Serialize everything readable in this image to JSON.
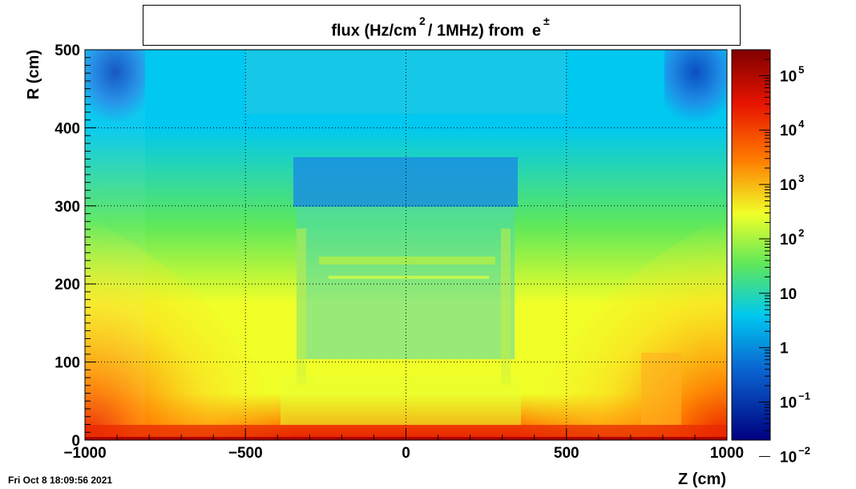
{
  "timestamp": "Fri Oct  8 18:09:56 2021",
  "chart_data": {
    "type": "heatmap",
    "title": {
      "main": "flux (Hz/cm",
      "superscript": "2",
      "rest": "/ 1MHz) from",
      "particle": "e",
      "particle_superscript": "±"
    },
    "xlabel": "Z (cm)",
    "ylabel": "R (cm)",
    "xlim": [
      -1000,
      1000
    ],
    "ylim": [
      0,
      500
    ],
    "x_ticks": [
      -1000,
      -500,
      0,
      500,
      1000
    ],
    "x_tick_labels": [
      "−1000",
      "−500",
      "0",
      "500",
      "1000"
    ],
    "y_ticks": [
      0,
      100,
      200,
      300,
      400,
      500
    ],
    "y_tick_labels": [
      "0",
      "100",
      "200",
      "300",
      "400",
      "500"
    ],
    "grid": true,
    "colorbar": {
      "scale": "log",
      "range": [
        0.02,
        300000
      ],
      "ticks": [
        {
          "value": 100000,
          "base": "10",
          "exp": "5"
        },
        {
          "value": 10000,
          "base": "10",
          "exp": "4"
        },
        {
          "value": 1000,
          "base": "10",
          "exp": "3"
        },
        {
          "value": 100,
          "base": "10",
          "exp": "2"
        },
        {
          "value": 10,
          "base": "10",
          "exp": ""
        },
        {
          "value": 1,
          "base": "1",
          "exp": ""
        },
        {
          "value": 0.1,
          "base": "10",
          "exp": "−1"
        },
        {
          "value": 0.01,
          "base": "10",
          "exp": "−2"
        }
      ]
    },
    "colors": {
      "low": "#00007f",
      "blue": "#0a64d0",
      "cyan": "#00c8f0",
      "green": "#5ee85a",
      "yellow": "#f0ff28",
      "orange": "#ff7a00",
      "red": "#e81400",
      "high": "#800000"
    }
  }
}
